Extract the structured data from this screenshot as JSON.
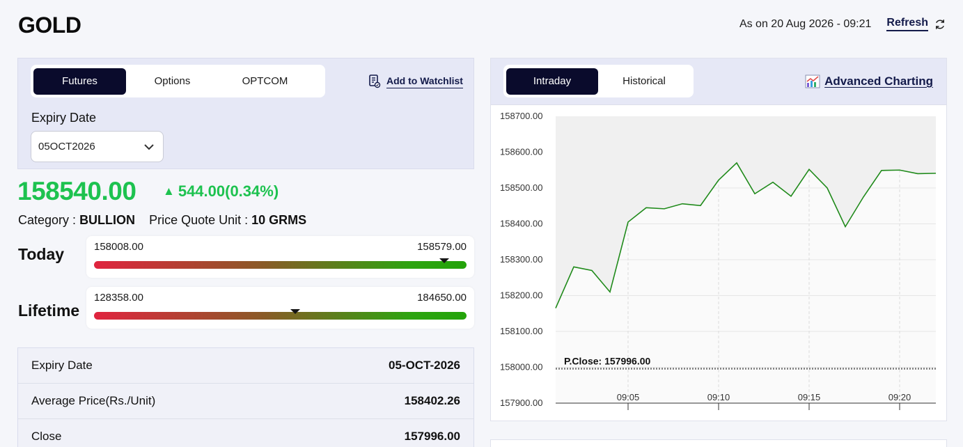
{
  "header": {
    "title": "GOLD",
    "as_on": "As on 20 Aug 2026 - 09:21",
    "refresh_label": "Refresh",
    "refresh_icon": "refresh-icon"
  },
  "instrument_tabs": [
    {
      "label": "Futures",
      "active": true
    },
    {
      "label": "Options",
      "active": false
    },
    {
      "label": "OPTCOM",
      "active": false
    }
  ],
  "watchlist": {
    "label": "Add to Watchlist",
    "icon": "watchlist-icon"
  },
  "expiry": {
    "label": "Expiry Date",
    "selected": "05OCT2026"
  },
  "quote": {
    "price": "158540.00",
    "change": "544.00(0.34%)",
    "direction": "up",
    "category_label": "Category :",
    "category_value": "BULLION",
    "unit_label": "Price Quote Unit :",
    "unit_value": "10 GRMS"
  },
  "ranges": [
    {
      "label": "Today",
      "low": "158008.00",
      "high": "158579.00",
      "marker_fraction": 0.94
    },
    {
      "label": "Lifetime",
      "low": "128358.00",
      "high": "184650.00",
      "marker_fraction": 0.54
    }
  ],
  "details": [
    {
      "label": "Expiry Date",
      "value": "05-OCT-2026"
    },
    {
      "label": "Average Price(Rs./Unit)",
      "value": "158402.26"
    },
    {
      "label": "Close",
      "value": "157996.00"
    }
  ],
  "chart_tabs": [
    {
      "label": "Intraday",
      "active": true
    },
    {
      "label": "Historical",
      "active": false
    }
  ],
  "advanced_charting": {
    "label": "Advanced Charting",
    "icon": "chart-icon"
  },
  "colors": {
    "up": "#1dc24f",
    "line": "#1f8a1a",
    "dark_tab": "#0a0b2c",
    "link": "#131a4a"
  },
  "chart_data": {
    "type": "line",
    "x_ticks": [
      "09:05",
      "09:10",
      "09:15",
      "09:20"
    ],
    "y_ticks": [
      "158700.00",
      "158600.00",
      "158500.00",
      "158400.00",
      "158300.00",
      "158200.00",
      "158100.00",
      "158000.00",
      "157900.00"
    ],
    "ylim": [
      157900,
      158700
    ],
    "xlim_minutes": [
      9.0,
      21.0
    ],
    "grid": true,
    "reference_line": {
      "label": "P.Close: 157996.00",
      "value": 157996
    },
    "series": [
      {
        "x": [
          0.0,
          1.0,
          2.0,
          3.0,
          4.0,
          5.0,
          6.0,
          7.0,
          8.0,
          9.0,
          10.0,
          11.0,
          12.0,
          13.0,
          14.0,
          15.0,
          16.0,
          17.0,
          18.0,
          19.0,
          20.0,
          21.0
        ],
        "values": [
          158165,
          158280,
          158270,
          158210,
          158405,
          158445,
          158442,
          158456,
          158451,
          158522,
          158570,
          158484,
          158516,
          158477,
          158552,
          158500,
          158392,
          158475,
          158549,
          158550,
          158540,
          158541
        ]
      }
    ]
  }
}
